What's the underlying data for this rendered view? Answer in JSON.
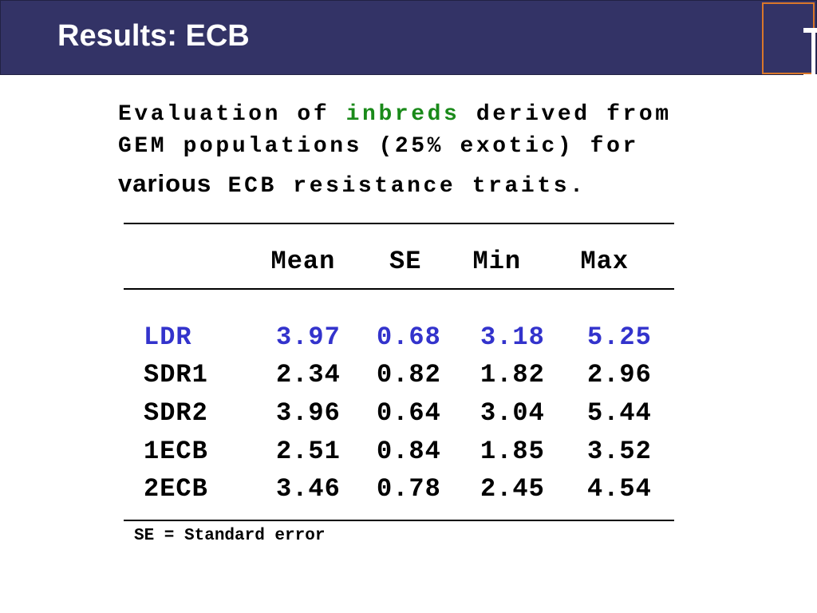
{
  "header": {
    "title": "Results: ECB"
  },
  "caption": {
    "lines": [
      [
        "Evaluation of ",
        "inbreds",
        " derived from"
      ],
      [
        "GEM populations (25% exotic) for"
      ],
      [
        "various",
        " ECB resistance traits."
      ]
    ]
  },
  "table": {
    "columns": [
      "Mean",
      "SE",
      "Min",
      "Max"
    ],
    "rows": [
      [
        "LDR",
        3.97,
        0.68,
        3.18,
        5.25
      ],
      [
        "SDR1",
        2.34,
        0.82,
        1.82,
        2.96
      ],
      [
        "SDR2",
        3.96,
        0.64,
        3.04,
        5.44
      ],
      [
        "1ECB",
        2.51,
        0.84,
        1.85,
        3.52
      ],
      [
        "2ECB",
        3.46,
        0.78,
        2.45,
        4.54
      ]
    ]
  },
  "footnote": "SE = Standard error"
}
